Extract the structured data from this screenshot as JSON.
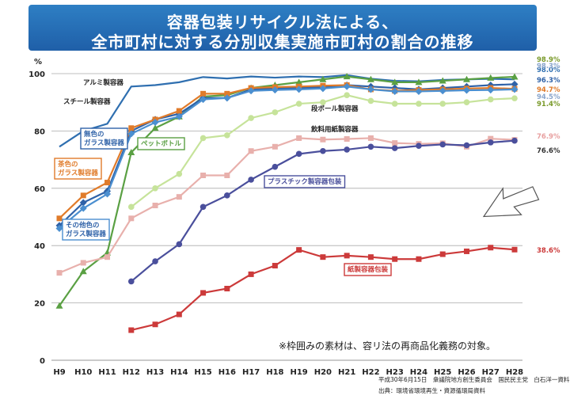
{
  "title": {
    "line1": "容器包装リサイクル法による、",
    "line2": "全市町村に対する分別収集実施市町村の割合の推移"
  },
  "note": "※枠囲みの素材は、容リ法の再商品化義務の対象。",
  "source": {
    "line1": "平成30年6月15日　衆議院地方創生委員会　国民民主党　白石洋一資料",
    "line2": "出典：環境省環境再生・資源循環局資料"
  },
  "colors": {
    "grid": "#aaaaaa",
    "title_bg": "#2366b0",
    "arrow": "#555555"
  },
  "chart_data": {
    "type": "line",
    "ylabel": "%",
    "ylim": [
      0,
      100
    ],
    "yticks": [
      0,
      20,
      40,
      60,
      80,
      100
    ],
    "categories": [
      "H9",
      "H10",
      "H11",
      "H12",
      "H13",
      "H14",
      "H15",
      "H16",
      "H17",
      "H18",
      "H19",
      "H20",
      "H21",
      "H22",
      "H23",
      "H24",
      "H25",
      "H26",
      "H27",
      "H28"
    ],
    "series": [
      {
        "name": "アルミ製容器",
        "color": "#2f6fb0",
        "marker": "none",
        "label_box": false,
        "label_color": "#222222",
        "end_label": "98.0%",
        "end_label_color": "#2f6fb0",
        "values": [
          74.5,
          80,
          82.5,
          95.5,
          96,
          97,
          98.8,
          98.3,
          99,
          98.6,
          99,
          98.8,
          99.5,
          98.2,
          97.5,
          97.3,
          97.8,
          98,
          98.2,
          98.0
        ]
      },
      {
        "name": "スチール製容器",
        "color": "#3b7fc0",
        "marker": "none",
        "label_box": false,
        "label_color": "#222222",
        "end_label": "98.3%",
        "end_label_color": "#8aa6cc",
        "values": [
          null,
          null,
          null,
          null,
          null,
          null,
          null,
          null,
          null,
          null,
          null,
          null,
          null,
          null,
          null,
          null,
          null,
          null,
          null,
          98.3
        ]
      },
      {
        "name": "ペットボトル",
        "color": "#5aa043",
        "marker": "triangle",
        "label_box": true,
        "label_color": "#5aa043",
        "end_label": "98.9%",
        "end_label_color": "#7a9a2a",
        "values": [
          19,
          31,
          37.5,
          72.5,
          81,
          85,
          92,
          92.5,
          95,
          96,
          97,
          98,
          99,
          98,
          97,
          97,
          97.5,
          98,
          98.5,
          98.9
        ]
      },
      {
        "name": "無色の\nガラス製容器",
        "color": "#2f62a8",
        "marker": "diamond",
        "label_box": true,
        "label_color": "#2f62a8",
        "end_label": "96.3%",
        "end_label_color": "#2f62a8",
        "values": [
          47,
          55,
          59,
          80,
          84,
          86,
          91.5,
          91.5,
          94.5,
          94.8,
          95,
          95.3,
          96,
          95.5,
          95,
          94.5,
          95,
          95.5,
          96,
          96.3
        ]
      },
      {
        "name": "茶色の\nガラス製容器",
        "color": "#e07b2a",
        "marker": "square",
        "label_box": true,
        "label_color": "#e07b2a",
        "end_label": "94.7%",
        "end_label_color": "#e07b2a",
        "values": [
          49.5,
          57.5,
          62,
          81,
          84,
          87,
          93,
          93,
          95,
          95.3,
          95.5,
          95.8,
          96,
          94.5,
          94,
          94.3,
          94.5,
          94.8,
          95,
          94.7
        ]
      },
      {
        "name": "その他色の\nガラス製容器",
        "color": "#4b8fd0",
        "marker": "diamond",
        "label_box": true,
        "label_color": "#2f62a8",
        "end_label": "94.5%",
        "end_label_color": "#8aa6cc",
        "values": [
          46,
          53,
          58,
          79,
          83,
          85,
          91,
          91.5,
          94,
          94.3,
          94.5,
          94.8,
          95.5,
          94.5,
          93.8,
          93.8,
          94,
          94.2,
          94.3,
          94.5
        ]
      },
      {
        "name": "段ボール製容器",
        "color": "#c6e39a",
        "marker": "circle",
        "label_box": false,
        "label_color": "#222222",
        "end_label": "91.4%",
        "end_label_color": "#7a9a2a",
        "values": [
          null,
          null,
          null,
          53.5,
          60,
          65,
          77.5,
          78.5,
          84.5,
          86.5,
          89.5,
          90,
          92.5,
          90.5,
          89.5,
          89.5,
          89.5,
          90,
          91,
          91.4
        ]
      },
      {
        "name": "飲料用紙製容器",
        "color": "#e8b0ac",
        "marker": "square",
        "label_box": false,
        "label_color": "#222222",
        "end_label": "76.9%",
        "end_label_color": "#e8a0a0",
        "values": [
          30.5,
          34,
          36,
          49.5,
          54,
          57,
          64.5,
          64.5,
          73,
          74.5,
          77.5,
          77,
          77.2,
          77.5,
          75.8,
          75.5,
          75.7,
          74.5,
          77.3,
          76.9
        ]
      },
      {
        "name": "プラスチック製容器包装",
        "color": "#4a4f9c",
        "marker": "circle",
        "label_box": true,
        "label_color": "#4a4f9c",
        "end_label": "76.6%",
        "end_label_color": "#333333",
        "values": [
          null,
          null,
          null,
          27.5,
          34.5,
          40.5,
          53.5,
          57.5,
          63,
          67.5,
          72,
          73,
          73.5,
          74.5,
          74,
          74.8,
          75.3,
          75,
          76,
          76.6
        ]
      },
      {
        "name": "紙製容器包装",
        "color": "#cc3a3a",
        "marker": "square",
        "label_box": true,
        "label_color": "#cc3a3a",
        "end_label": "38.6%",
        "end_label_color": "#cc3a3a",
        "values": [
          null,
          null,
          null,
          10.5,
          12.5,
          16,
          23.5,
          25,
          30,
          33,
          38.5,
          36,
          36.5,
          36,
          35.3,
          35.3,
          37,
          38,
          39.3,
          38.6
        ]
      }
    ]
  }
}
